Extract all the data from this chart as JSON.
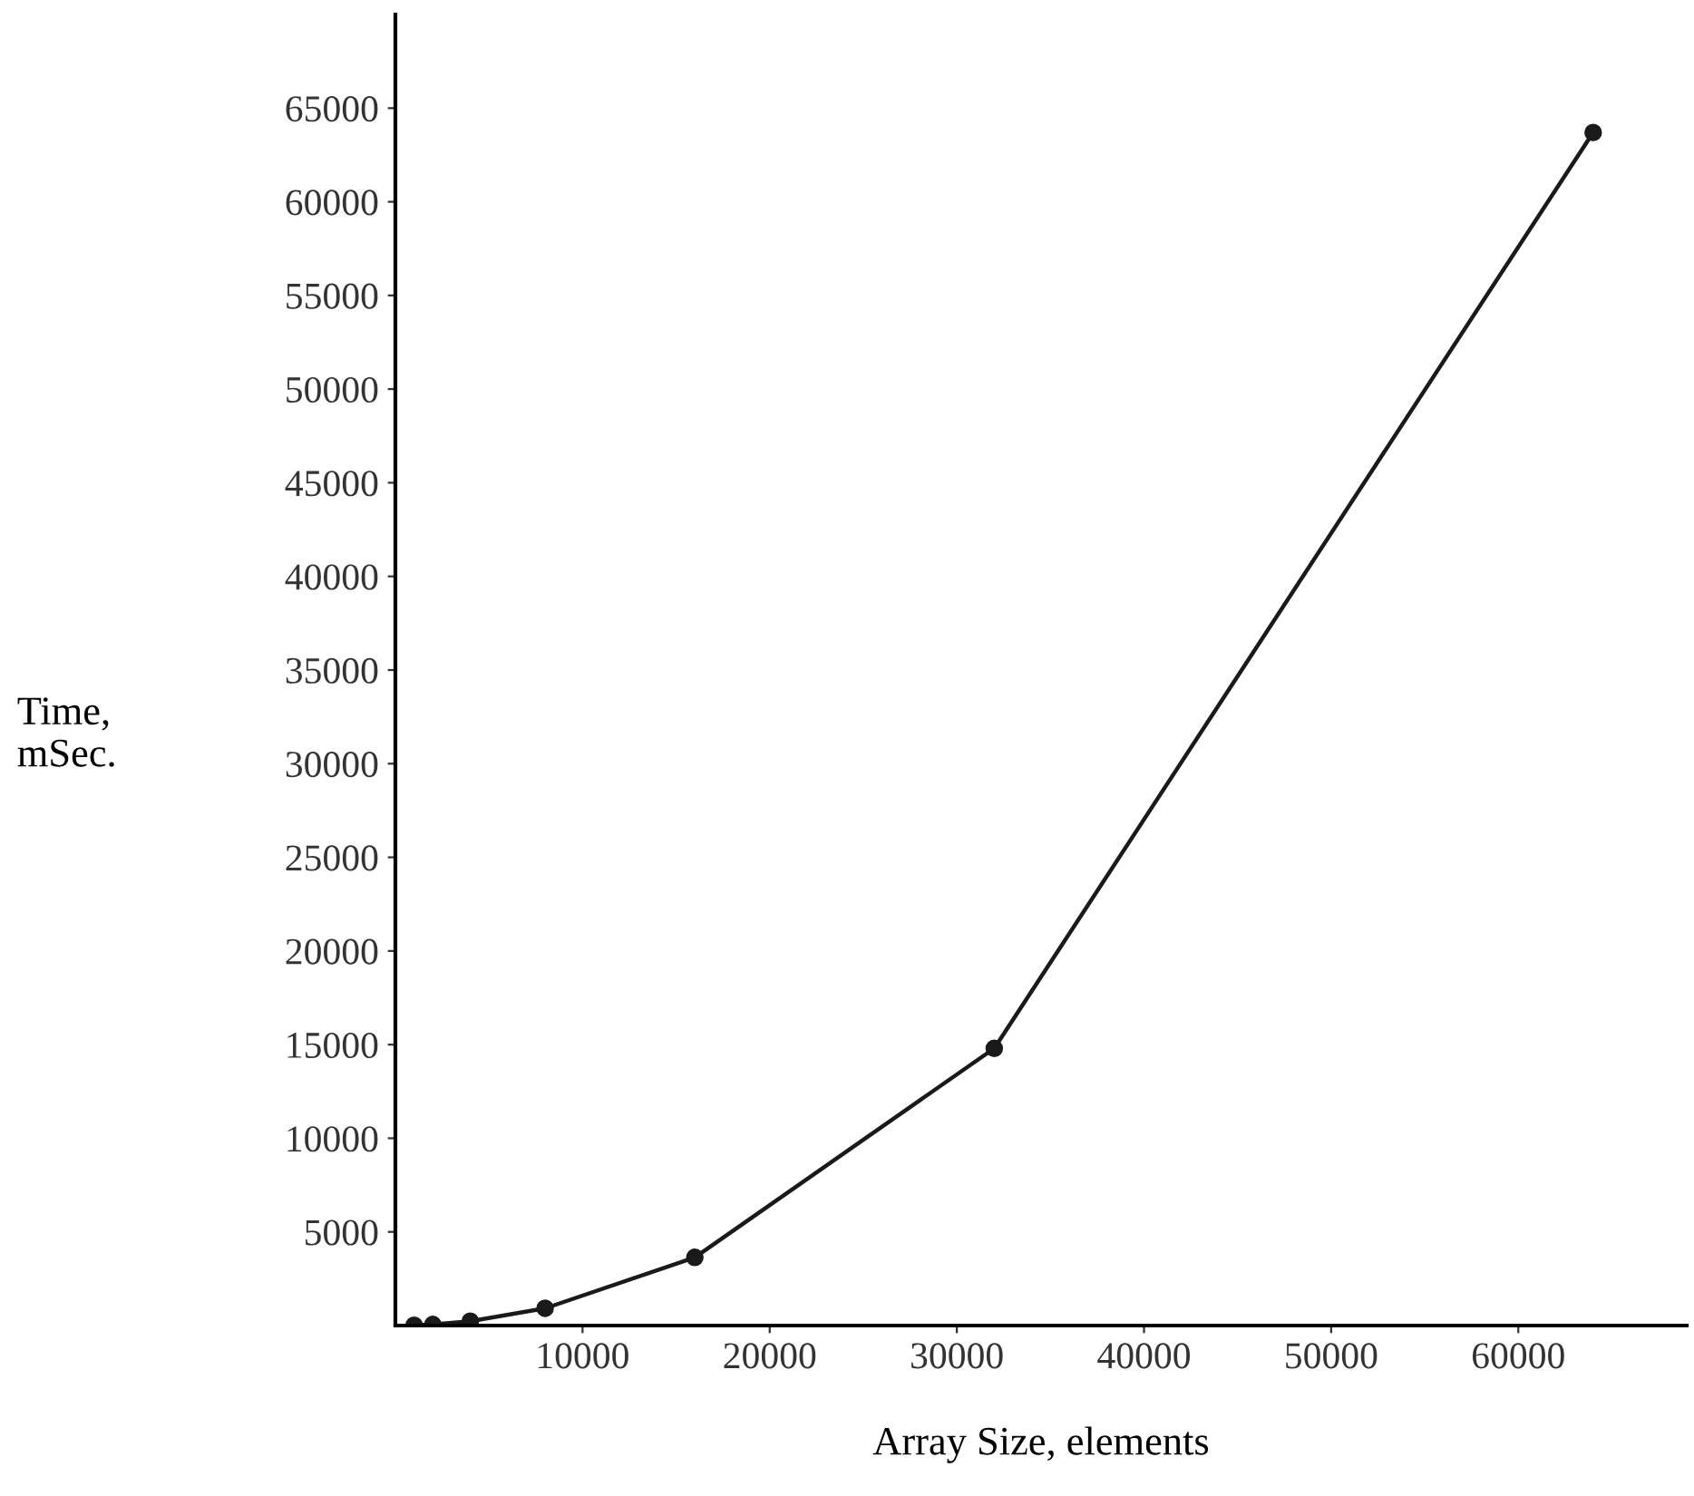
{
  "chart_data": {
    "type": "line",
    "xlabel": "Array Size, elements",
    "ylabel": "Time,\nmSec.",
    "x": [
      1000,
      2000,
      4000,
      8000,
      16000,
      32000,
      64000
    ],
    "series": [
      {
        "color": "#1a1a1a",
        "values": [
          15,
          60,
          230,
          920,
          3640,
          14800,
          63700
        ]
      }
    ],
    "xlim": [
      0,
      69000
    ],
    "ylim": [
      0,
      70000
    ],
    "xticks": [
      10000,
      20000,
      30000,
      40000,
      50000,
      60000
    ],
    "yticks": [
      5000,
      10000,
      15000,
      20000,
      25000,
      30000,
      35000,
      40000,
      45000,
      50000,
      55000,
      60000,
      65000
    ],
    "marker": "circle",
    "line_style": "solid",
    "grid": false,
    "legend": false
  }
}
